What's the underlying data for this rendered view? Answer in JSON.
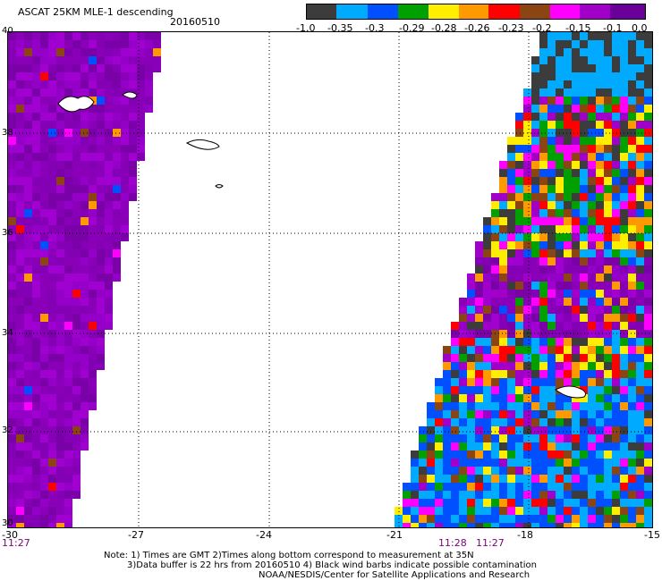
{
  "header": {
    "title": "ASCAT 25KM MLE-1 descending",
    "date": "20160510"
  },
  "colorbar": {
    "labels": [
      "-1.0",
      "-0.35",
      "-0.3",
      "-0.29",
      "-0.28",
      "-0.26",
      "-0.23",
      "-0.2",
      "-0.15",
      "-0.1",
      "0.0"
    ],
    "colors": [
      "#3c3c3c",
      "#00aaff",
      "#0050ff",
      "#00a000",
      "#ffee00",
      "#ff9900",
      "#ff0000",
      "#8b4513",
      "#ff00ff",
      "#a000c8",
      "#6a0099"
    ]
  },
  "axes": {
    "y_labels": [
      "40",
      "38",
      "36",
      "34",
      "32",
      "30"
    ],
    "x_labels": [
      "-30",
      "-27",
      "-24",
      "-21",
      "-18",
      "-15"
    ]
  },
  "times": {
    "left": "11:27",
    "mid1": "11:28",
    "mid2": "11:27"
  },
  "notes": {
    "line1": "Note: 1) Times are GMT 2)Times along bottom correspond to measurement at 35N",
    "line2": "3)Data buffer is 22 hrs from 20160510 4) Black wind barbs indicate possible contamination",
    "line3": "NOAA/NESDIS/Center for Satellite Applications and Research"
  }
}
